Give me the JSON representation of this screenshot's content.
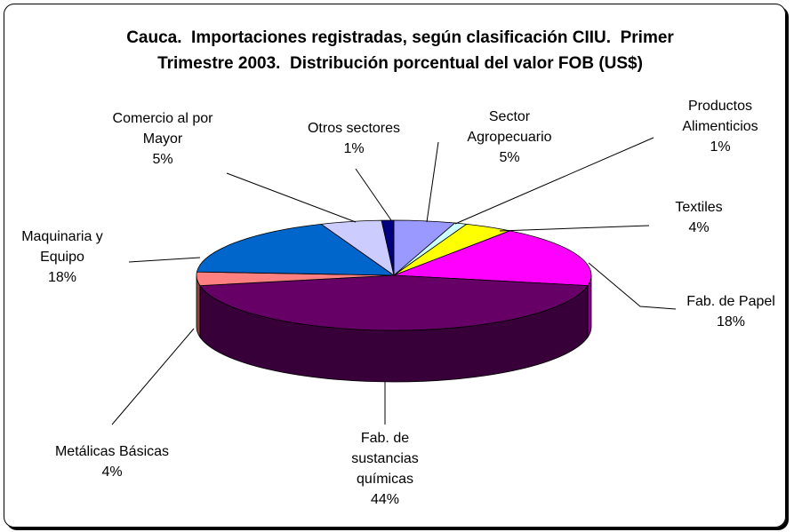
{
  "chart_data": {
    "type": "pie3d",
    "title": "Cauca.  Importaciones registradas, según clasificación CIIU.  Primer Trimestre 2003.  Distribución porcentual del valor FOB (US$)",
    "categories": [
      "Sector Agropecuario",
      "Productos Alimenticios",
      "Textiles",
      "Fab. de Papel",
      "Fab. de sustancias químicas",
      "Metálicas Básicas",
      "Maquinaria y Equipo",
      "Comercio al por Mayor",
      "Otros sectores"
    ],
    "values": [
      5,
      1,
      4,
      18,
      44,
      4,
      18,
      5,
      1
    ],
    "value_labels": [
      "5%",
      "1%",
      "4%",
      "18%",
      "44%",
      "4%",
      "18%",
      "5%",
      "1%"
    ],
    "colors": [
      "#9999ff",
      "#ccffff",
      "#ffff00",
      "#ff00ff",
      "#660066",
      "#ff8080",
      "#0066cc",
      "#ccccff",
      "#000080"
    ]
  }
}
